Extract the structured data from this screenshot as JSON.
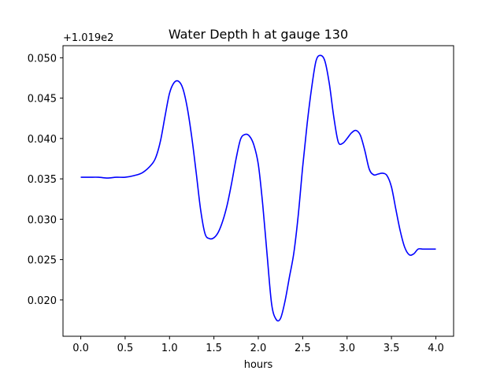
{
  "chart_data": {
    "type": "line",
    "title": "Water Depth h at gauge 130",
    "xlabel": "hours",
    "ylabel": "",
    "y_offset_label": "+1.019e2",
    "xlim": [
      -0.2,
      4.2
    ],
    "ylim": [
      0.0155,
      0.0515
    ],
    "x_ticks": [
      0.0,
      0.5,
      1.0,
      1.5,
      2.0,
      2.5,
      3.0,
      3.5,
      4.0
    ],
    "x_tick_labels": [
      "0.0",
      "0.5",
      "1.0",
      "1.5",
      "2.0",
      "2.5",
      "3.0",
      "3.5",
      "4.0"
    ],
    "y_ticks": [
      0.02,
      0.025,
      0.03,
      0.035,
      0.04,
      0.045,
      0.05
    ],
    "y_tick_labels": [
      "0.020",
      "0.025",
      "0.030",
      "0.035",
      "0.040",
      "0.045",
      "0.050"
    ],
    "grid": false,
    "line_color": "#0000ff",
    "series": [
      {
        "x": [
          0.0,
          0.1,
          0.2,
          0.3,
          0.4,
          0.5,
          0.6,
          0.7,
          0.8,
          0.85,
          0.9,
          0.95,
          1.0,
          1.05,
          1.1,
          1.15,
          1.2,
          1.25,
          1.3,
          1.35,
          1.4,
          1.45,
          1.5,
          1.55,
          1.6,
          1.65,
          1.7,
          1.75,
          1.8,
          1.85,
          1.9,
          1.95,
          2.0,
          2.05,
          2.1,
          2.15,
          2.2,
          2.25,
          2.3,
          2.35,
          2.4,
          2.45,
          2.5,
          2.55,
          2.6,
          2.65,
          2.7,
          2.75,
          2.8,
          2.85,
          2.9,
          2.95,
          3.0,
          3.05,
          3.1,
          3.15,
          3.2,
          3.25,
          3.3,
          3.35,
          3.4,
          3.45,
          3.5,
          3.55,
          3.6,
          3.65,
          3.7,
          3.75,
          3.8,
          3.85,
          3.9,
          3.95,
          4.0
        ],
        "values": [
          0.0352,
          0.0352,
          0.0352,
          0.0351,
          0.0352,
          0.0352,
          0.0354,
          0.0358,
          0.0368,
          0.0378,
          0.0398,
          0.0428,
          0.0456,
          0.0469,
          0.0471,
          0.0462,
          0.0438,
          0.0402,
          0.0358,
          0.0312,
          0.0282,
          0.0276,
          0.0277,
          0.0284,
          0.0298,
          0.0318,
          0.0345,
          0.0375,
          0.0399,
          0.0405,
          0.0403,
          0.0392,
          0.0368,
          0.0318,
          0.0255,
          0.0195,
          0.0176,
          0.0177,
          0.0198,
          0.0228,
          0.0258,
          0.0305,
          0.0365,
          0.0418,
          0.0462,
          0.0496,
          0.0503,
          0.0496,
          0.0468,
          0.0427,
          0.0396,
          0.0394,
          0.04,
          0.0407,
          0.041,
          0.0404,
          0.0385,
          0.0362,
          0.0355,
          0.0356,
          0.0357,
          0.0354,
          0.034,
          0.0312,
          0.0285,
          0.0265,
          0.0256,
          0.0257,
          0.0263,
          0.0263,
          0.0263,
          0.0263,
          0.0263
        ]
      }
    ]
  }
}
